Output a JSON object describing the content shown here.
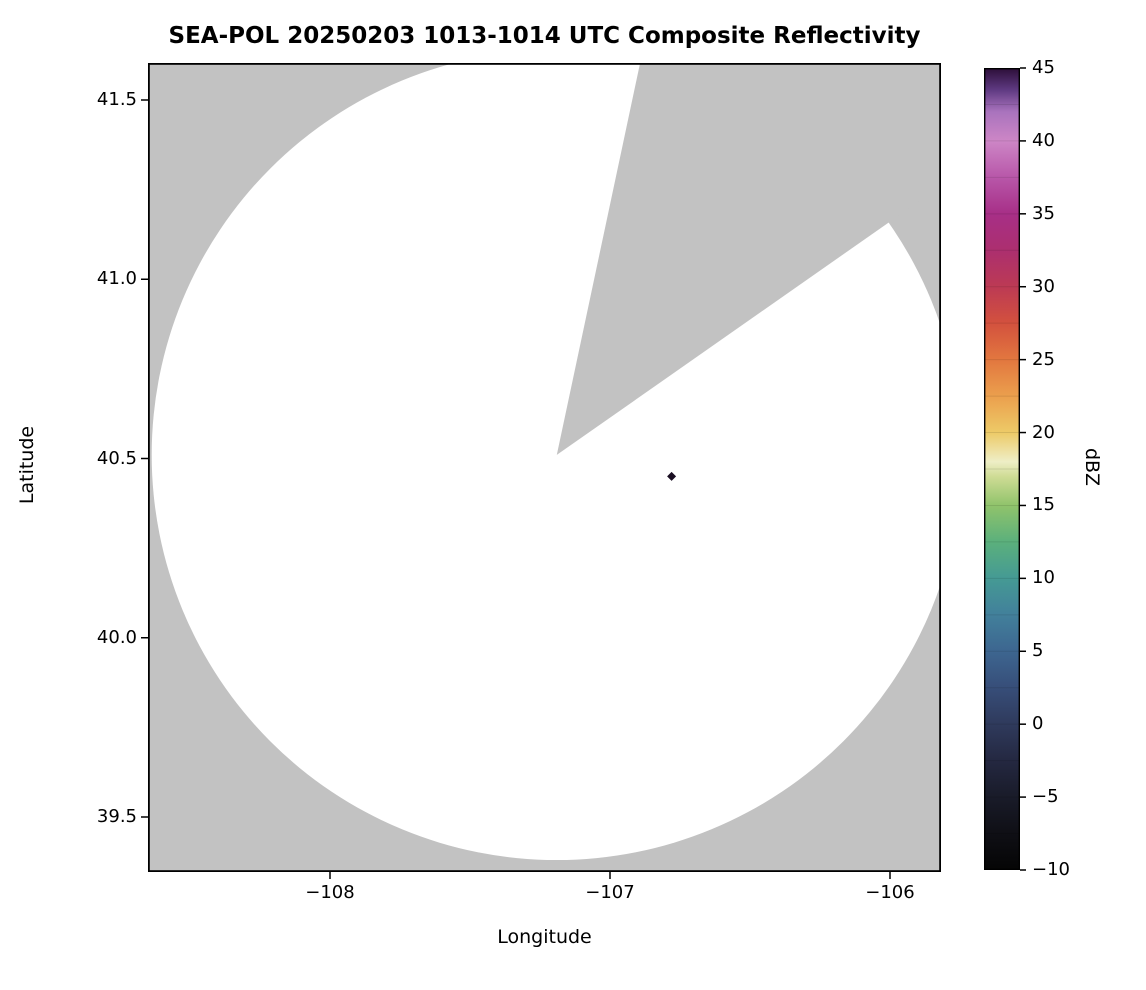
{
  "chart_data": {
    "type": "radar-ppi-map",
    "title": "SEA-POL 20250203 1013-1014 UTC Composite Reflectivity",
    "xlabel": "Longitude",
    "ylabel": "Latitude",
    "xlim": [
      -108.65,
      -105.82
    ],
    "ylim": [
      39.35,
      41.6
    ],
    "grid": false,
    "xticks": [
      {
        "value": -108,
        "label": "−108"
      },
      {
        "value": -107,
        "label": "−107"
      },
      {
        "value": -106,
        "label": "−106"
      }
    ],
    "yticks": [
      {
        "value": 41.5,
        "label": "41.5"
      },
      {
        "value": 41.0,
        "label": "41.0"
      },
      {
        "value": 40.5,
        "label": "40.5"
      },
      {
        "value": 40.0,
        "label": "40.0"
      },
      {
        "value": 39.5,
        "label": "39.5"
      }
    ],
    "radar": {
      "center_lon": -107.19,
      "center_lat": 40.51,
      "coverage_radius_deg_lat": 1.13,
      "blocked_sector_azimuth_deg": {
        "from": 12,
        "to": 55
      },
      "coverage_color": "#ffffff",
      "nodata_color": "#c2c2c2"
    },
    "echoes": [
      {
        "lon": -106.78,
        "lat": 40.45,
        "approx_dbz": 45,
        "color": "#1a0e22"
      }
    ],
    "colorbar": {
      "label": "dBZ",
      "min": -10,
      "max": 45,
      "level_step": 2.5,
      "ticks": [
        {
          "value": 45,
          "label": "45"
        },
        {
          "value": 40,
          "label": "40"
        },
        {
          "value": 35,
          "label": "35"
        },
        {
          "value": 30,
          "label": "30"
        },
        {
          "value": 25,
          "label": "25"
        },
        {
          "value": 20,
          "label": "20"
        },
        {
          "value": 15,
          "label": "15"
        },
        {
          "value": 10,
          "label": "10"
        },
        {
          "value": 5,
          "label": "5"
        },
        {
          "value": 0,
          "label": "0"
        },
        {
          "value": -5,
          "label": "−5"
        },
        {
          "value": -10,
          "label": "−10"
        }
      ],
      "stops": [
        {
          "value": -10,
          "color": "#050505"
        },
        {
          "value": -7.5,
          "color": "#0f0f15"
        },
        {
          "value": -5,
          "color": "#191b29"
        },
        {
          "value": -2.5,
          "color": "#242841"
        },
        {
          "value": 0,
          "color": "#2f3a5c"
        },
        {
          "value": 2.5,
          "color": "#374e79"
        },
        {
          "value": 5,
          "color": "#3d6690"
        },
        {
          "value": 7.5,
          "color": "#42809b"
        },
        {
          "value": 10,
          "color": "#459a94"
        },
        {
          "value": 12.5,
          "color": "#5bb07c"
        },
        {
          "value": 15,
          "color": "#90c36b"
        },
        {
          "value": 17,
          "color": "#cfdc95"
        },
        {
          "value": 18,
          "color": "#eeeec6"
        },
        {
          "value": 20,
          "color": "#edca67"
        },
        {
          "value": 22.5,
          "color": "#eb9f4d"
        },
        {
          "value": 25,
          "color": "#e2773f"
        },
        {
          "value": 27.5,
          "color": "#d3513e"
        },
        {
          "value": 30,
          "color": "#bc3a54"
        },
        {
          "value": 32.5,
          "color": "#ac2f6f"
        },
        {
          "value": 35,
          "color": "#a72f87"
        },
        {
          "value": 37.5,
          "color": "#b857a9"
        },
        {
          "value": 40,
          "color": "#cd86c6"
        },
        {
          "value": 42,
          "color": "#a973bd"
        },
        {
          "value": 43.5,
          "color": "#5f3a82"
        },
        {
          "value": 45,
          "color": "#2c0e38"
        }
      ]
    }
  }
}
